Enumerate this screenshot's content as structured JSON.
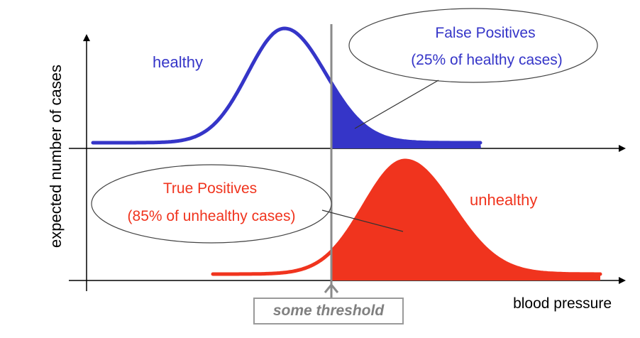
{
  "y_axis_label": "expected number of cases",
  "x_axis_label": "blood pressure",
  "healthy_label": "healthy",
  "unhealthy_label": "unhealthy",
  "false_positives": {
    "title": "False Positives",
    "detail": "(25% of healthy cases)"
  },
  "true_positives": {
    "title": "True Positives",
    "detail": "(85% of unhealthy cases)"
  },
  "threshold_label": "some threshold",
  "colors": {
    "healthy": "#3535c8",
    "unhealthy": "#f0341e",
    "axis": "#000000",
    "threshold": "#8a8a8a"
  }
}
